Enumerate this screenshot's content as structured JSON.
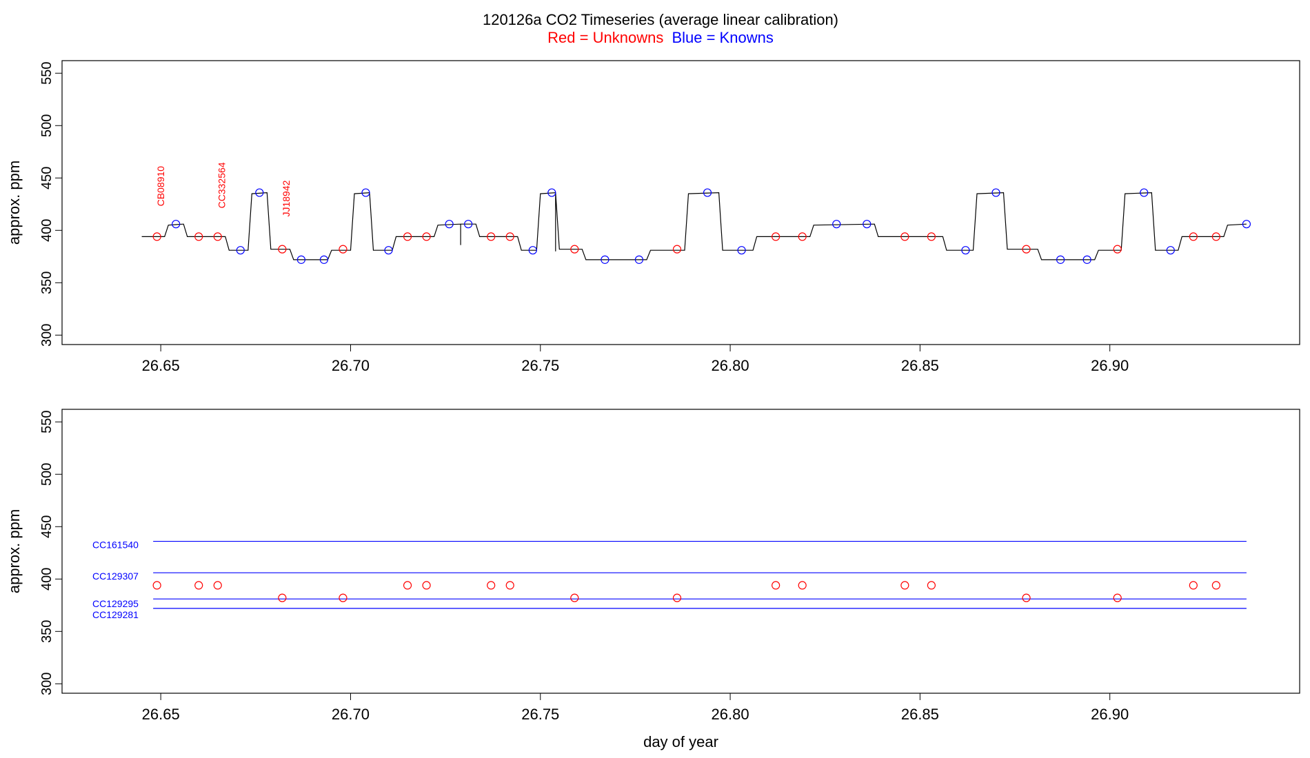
{
  "title": "120126a   CO2 Timeseries (average linear calibration)",
  "subtitle": {
    "red": "Red = Unknowns",
    "blue": "Blue = Knowns"
  },
  "colors": {
    "unknown": "#ff0000",
    "known": "#0000ff",
    "trace": "#000000"
  },
  "chart_data": [
    {
      "type": "line",
      "panel": "top",
      "ylabel": "approx. ppm",
      "xlabel": "",
      "xlim": [
        26.624,
        26.95
      ],
      "ylim": [
        291,
        562
      ],
      "x_ticks": [
        "26.65",
        "26.70",
        "26.75",
        "26.80",
        "26.85",
        "26.90"
      ],
      "x_tick_values": [
        26.65,
        26.7,
        26.75,
        26.8,
        26.85,
        26.9
      ],
      "y_ticks": [
        "300",
        "350",
        "400",
        "450",
        "500",
        "550"
      ],
      "y_tick_values": [
        300,
        350,
        400,
        450,
        500,
        550
      ],
      "trace": [
        [
          26.645,
          394
        ],
        [
          26.651,
          394
        ],
        [
          26.652,
          405
        ],
        [
          26.656,
          406
        ],
        [
          26.657,
          394
        ],
        [
          26.667,
          394
        ],
        [
          26.668,
          381
        ],
        [
          26.673,
          381
        ],
        [
          26.674,
          435
        ],
        [
          26.678,
          436
        ],
        [
          26.679,
          382
        ],
        [
          26.684,
          382
        ],
        [
          26.685,
          372
        ],
        [
          26.694,
          372
        ],
        [
          26.695,
          381
        ],
        [
          26.7,
          381
        ],
        [
          26.701,
          435
        ],
        [
          26.705,
          436
        ],
        [
          26.706,
          381
        ],
        [
          26.711,
          381
        ],
        [
          26.712,
          394
        ],
        [
          26.722,
          394
        ],
        [
          26.723,
          405
        ],
        [
          26.729,
          406
        ],
        [
          26.729,
          386
        ],
        [
          26.729,
          406
        ],
        [
          26.733,
          406
        ],
        [
          26.734,
          394
        ],
        [
          26.744,
          394
        ],
        [
          26.745,
          381
        ],
        [
          26.749,
          381
        ],
        [
          26.75,
          435
        ],
        [
          26.754,
          436
        ],
        [
          26.754,
          380
        ],
        [
          26.754,
          436
        ],
        [
          26.755,
          382
        ],
        [
          26.761,
          382
        ],
        [
          26.762,
          372
        ],
        [
          26.778,
          372
        ],
        [
          26.779,
          381
        ],
        [
          26.788,
          381
        ],
        [
          26.789,
          435
        ],
        [
          26.797,
          436
        ],
        [
          26.798,
          381
        ],
        [
          26.806,
          381
        ],
        [
          26.807,
          394
        ],
        [
          26.821,
          394
        ],
        [
          26.822,
          405
        ],
        [
          26.838,
          406
        ],
        [
          26.839,
          394
        ],
        [
          26.856,
          394
        ],
        [
          26.857,
          381
        ],
        [
          26.864,
          381
        ],
        [
          26.865,
          435
        ],
        [
          26.872,
          436
        ],
        [
          26.873,
          382
        ],
        [
          26.881,
          382
        ],
        [
          26.882,
          372
        ],
        [
          26.896,
          372
        ],
        [
          26.897,
          381
        ],
        [
          26.903,
          381
        ],
        [
          26.904,
          435
        ],
        [
          26.911,
          436
        ],
        [
          26.912,
          381
        ],
        [
          26.918,
          381
        ],
        [
          26.919,
          394
        ],
        [
          26.93,
          394
        ],
        [
          26.931,
          405
        ],
        [
          26.936,
          406
        ]
      ],
      "unknowns": [
        [
          26.649,
          394
        ],
        [
          26.66,
          394
        ],
        [
          26.665,
          394
        ],
        [
          26.682,
          382
        ],
        [
          26.698,
          382
        ],
        [
          26.715,
          394
        ],
        [
          26.72,
          394
        ],
        [
          26.737,
          394
        ],
        [
          26.742,
          394
        ],
        [
          26.759,
          382
        ],
        [
          26.786,
          382
        ],
        [
          26.812,
          394
        ],
        [
          26.819,
          394
        ],
        [
          26.846,
          394
        ],
        [
          26.853,
          394
        ],
        [
          26.878,
          382
        ],
        [
          26.902,
          382
        ],
        [
          26.922,
          394
        ],
        [
          26.928,
          394
        ]
      ],
      "knowns": [
        [
          26.654,
          406
        ],
        [
          26.671,
          381
        ],
        [
          26.676,
          436
        ],
        [
          26.687,
          372
        ],
        [
          26.693,
          372
        ],
        [
          26.704,
          436
        ],
        [
          26.71,
          381
        ],
        [
          26.726,
          406
        ],
        [
          26.731,
          406
        ],
        [
          26.748,
          381
        ],
        [
          26.753,
          436
        ],
        [
          26.767,
          372
        ],
        [
          26.776,
          372
        ],
        [
          26.794,
          436
        ],
        [
          26.803,
          381
        ],
        [
          26.828,
          406
        ],
        [
          26.836,
          406
        ],
        [
          26.862,
          381
        ],
        [
          26.87,
          436
        ],
        [
          26.887,
          372
        ],
        [
          26.894,
          372
        ],
        [
          26.909,
          436
        ],
        [
          26.916,
          381
        ],
        [
          26.936,
          406
        ]
      ],
      "annotations": [
        {
          "text": "CB08910",
          "x": 26.65,
          "y": 423
        },
        {
          "text": "CC332564",
          "x": 26.666,
          "y": 421
        },
        {
          "text": "JJ18942",
          "x": 26.683,
          "y": 413
        }
      ]
    },
    {
      "type": "scatter",
      "panel": "bottom",
      "ylabel": "approx. ppm",
      "xlabel": "day of year",
      "xlim": [
        26.624,
        26.95
      ],
      "ylim": [
        291,
        562
      ],
      "x_ticks": [
        "26.65",
        "26.70",
        "26.75",
        "26.80",
        "26.85",
        "26.90"
      ],
      "x_tick_values": [
        26.65,
        26.7,
        26.75,
        26.8,
        26.85,
        26.9
      ],
      "y_ticks": [
        "300",
        "350",
        "400",
        "450",
        "500",
        "550"
      ],
      "y_tick_values": [
        300,
        350,
        400,
        450,
        500,
        550
      ],
      "reference_lines": [
        {
          "name": "CC161540",
          "y": 436
        },
        {
          "name": "CC129307",
          "y": 406
        },
        {
          "name": "CC129295",
          "y": 381
        },
        {
          "name": "CC129281",
          "y": 372
        }
      ],
      "line_x_range": [
        26.648,
        26.936
      ],
      "unknowns": [
        [
          26.649,
          394
        ],
        [
          26.66,
          394
        ],
        [
          26.665,
          394
        ],
        [
          26.682,
          382
        ],
        [
          26.698,
          382
        ],
        [
          26.715,
          394
        ],
        [
          26.72,
          394
        ],
        [
          26.737,
          394
        ],
        [
          26.742,
          394
        ],
        [
          26.759,
          382
        ],
        [
          26.786,
          382
        ],
        [
          26.812,
          394
        ],
        [
          26.819,
          394
        ],
        [
          26.846,
          394
        ],
        [
          26.853,
          394
        ],
        [
          26.878,
          382
        ],
        [
          26.902,
          382
        ],
        [
          26.922,
          394
        ],
        [
          26.928,
          394
        ]
      ]
    }
  ]
}
